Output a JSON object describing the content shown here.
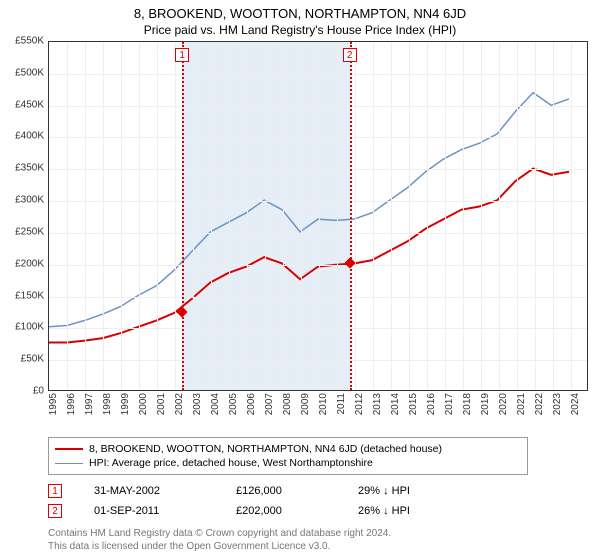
{
  "title": "8, BROOKEND, WOOTTON, NORTHAMPTON, NN4 6JD",
  "subtitle": "Price paid vs. HM Land Registry's House Price Index (HPI)",
  "chart": {
    "type": "line",
    "ylim": [
      0,
      550000
    ],
    "ytick_step": 50000,
    "y_labels": [
      "£0",
      "£50K",
      "£100K",
      "£150K",
      "£200K",
      "£250K",
      "£300K",
      "£350K",
      "£400K",
      "£450K",
      "£500K",
      "£550K"
    ],
    "x_labels": [
      "1995",
      "1996",
      "1997",
      "1998",
      "1999",
      "2000",
      "2001",
      "2002",
      "2003",
      "2004",
      "2005",
      "2006",
      "2007",
      "2008",
      "2009",
      "2010",
      "2011",
      "2012",
      "2013",
      "2014",
      "2015",
      "2016",
      "2017",
      "2018",
      "2019",
      "2020",
      "2021",
      "2022",
      "2023",
      "2024"
    ],
    "background_color": "#ffffff",
    "grid_color": "#eeeeee",
    "border_color": "#333333",
    "shaded_range_years": [
      2002.4,
      2011.7
    ],
    "shade_color": "rgba(180,205,230,0.35)",
    "series": {
      "property": {
        "color": "#d80000",
        "width": 2,
        "points": [
          [
            1995,
            75000
          ],
          [
            1996,
            75000
          ],
          [
            1997,
            78000
          ],
          [
            1998,
            82000
          ],
          [
            1999,
            90000
          ],
          [
            2000,
            100000
          ],
          [
            2001,
            110000
          ],
          [
            2002,
            122000
          ],
          [
            2003,
            145000
          ],
          [
            2004,
            170000
          ],
          [
            2005,
            185000
          ],
          [
            2006,
            195000
          ],
          [
            2007,
            210000
          ],
          [
            2008,
            200000
          ],
          [
            2009,
            175000
          ],
          [
            2010,
            195000
          ],
          [
            2011,
            198000
          ],
          [
            2012,
            200000
          ],
          [
            2013,
            205000
          ],
          [
            2014,
            220000
          ],
          [
            2015,
            235000
          ],
          [
            2016,
            255000
          ],
          [
            2017,
            270000
          ],
          [
            2018,
            285000
          ],
          [
            2019,
            290000
          ],
          [
            2020,
            300000
          ],
          [
            2021,
            330000
          ],
          [
            2022,
            350000
          ],
          [
            2023,
            340000
          ],
          [
            2024,
            345000
          ]
        ]
      },
      "hpi": {
        "color": "#6b93c4",
        "width": 1.5,
        "points": [
          [
            1995,
            100000
          ],
          [
            1996,
            102000
          ],
          [
            1997,
            110000
          ],
          [
            1998,
            120000
          ],
          [
            1999,
            132000
          ],
          [
            2000,
            150000
          ],
          [
            2001,
            165000
          ],
          [
            2002,
            190000
          ],
          [
            2003,
            220000
          ],
          [
            2004,
            250000
          ],
          [
            2005,
            265000
          ],
          [
            2006,
            280000
          ],
          [
            2007,
            300000
          ],
          [
            2008,
            285000
          ],
          [
            2009,
            250000
          ],
          [
            2010,
            270000
          ],
          [
            2011,
            268000
          ],
          [
            2012,
            270000
          ],
          [
            2013,
            280000
          ],
          [
            2014,
            300000
          ],
          [
            2015,
            320000
          ],
          [
            2016,
            345000
          ],
          [
            2017,
            365000
          ],
          [
            2018,
            380000
          ],
          [
            2019,
            390000
          ],
          [
            2020,
            405000
          ],
          [
            2021,
            440000
          ],
          [
            2022,
            470000
          ],
          [
            2023,
            450000
          ],
          [
            2024,
            460000
          ]
        ]
      }
    },
    "sale_markers": [
      {
        "n": "1",
        "year": 2002.4,
        "price": 126000
      },
      {
        "n": "2",
        "year": 2011.7,
        "price": 202000
      }
    ]
  },
  "legend": {
    "items": [
      {
        "color": "#d80000",
        "width": 2,
        "label": "8, BROOKEND, WOOTTON, NORTHAMPTON, NN4 6JD (detached house)"
      },
      {
        "color": "#6b93c4",
        "width": 1.5,
        "label": "HPI: Average price, detached house, West Northamptonshire"
      }
    ]
  },
  "sales_table": {
    "rows": [
      {
        "n": "1",
        "date": "31-MAY-2002",
        "price": "£126,000",
        "delta": "29% ↓ HPI"
      },
      {
        "n": "2",
        "date": "01-SEP-2011",
        "price": "£202,000",
        "delta": "26% ↓ HPI"
      }
    ]
  },
  "footer": {
    "line1": "Contains HM Land Registry data © Crown copyright and database right 2024.",
    "line2": "This data is licensed under the Open Government Licence v3.0."
  }
}
